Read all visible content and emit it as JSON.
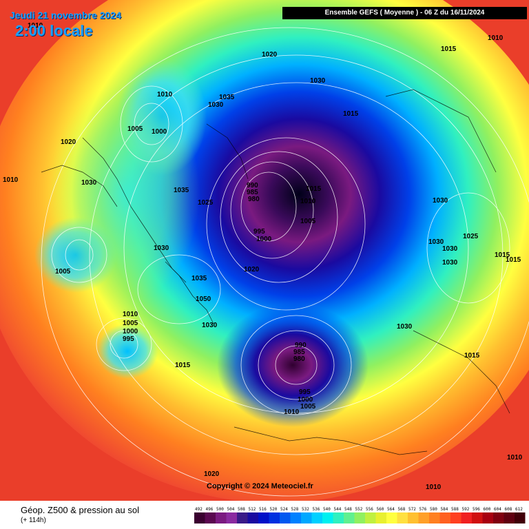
{
  "title": {
    "date": "Jeudi 21 novembre 2024",
    "time": "2:00 locale",
    "model_run": "Ensemble GEFS  ( Moyenne )  -  06 Z du 16/11/2024"
  },
  "footer": {
    "title": "Géop. Z500 & pression au sol",
    "forecast_hour": "(+ 114h)"
  },
  "copyright": "Copyright © 2024 Meteociel.fr",
  "legend": {
    "values": [
      "492",
      "496",
      "500",
      "504",
      "508",
      "512",
      "516",
      "520",
      "524",
      "528",
      "532",
      "536",
      "540",
      "544",
      "548",
      "552",
      "556",
      "560",
      "564",
      "568",
      "572",
      "576",
      "580",
      "584",
      "588",
      "592",
      "596",
      "600",
      "604",
      "608",
      "612"
    ],
    "colors": [
      "#3a0030",
      "#5a0850",
      "#7a1a80",
      "#8a2aa0",
      "#3a1a88",
      "#1a0aa0",
      "#0010c8",
      "#0030e0",
      "#0058f0",
      "#0080ff",
      "#00a8ff",
      "#00d0ff",
      "#00f0f0",
      "#30f0c0",
      "#60f090",
      "#90f060",
      "#c0f040",
      "#e8f030",
      "#ffff40",
      "#ffe040",
      "#ffc030",
      "#ffa028",
      "#ff8020",
      "#ff6020",
      "#ff4020",
      "#f02020",
      "#d01010",
      "#a80010",
      "#800010",
      "#600010",
      "#400008"
    ]
  },
  "pressure_labels": [
    "1010",
    "1015",
    "1020",
    "1025",
    "1030",
    "1035",
    "1050",
    "1005",
    "1000",
    "995",
    "990",
    "985",
    "980"
  ],
  "colors": {
    "title_blue": "#1aa0ff",
    "header_bg": "#000000",
    "background_warm": "#f04a30"
  }
}
